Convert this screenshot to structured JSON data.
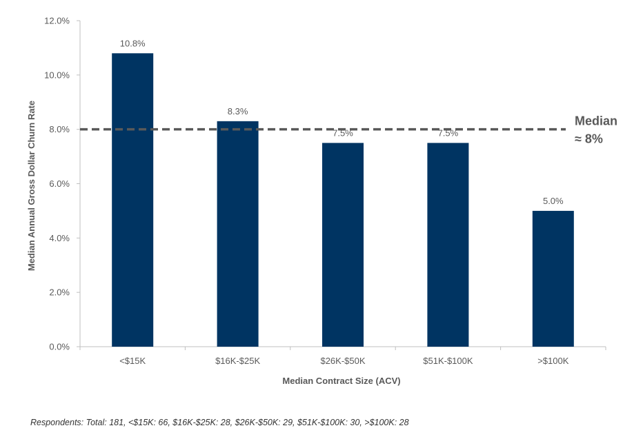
{
  "chart_data": {
    "type": "bar",
    "categories": [
      "<$15K",
      "$16K-$25K",
      "$26K-$50K",
      "$51K-$100K",
      ">$100K"
    ],
    "values": [
      10.8,
      8.3,
      7.5,
      7.5,
      5.0
    ],
    "data_labels": [
      "10.8%",
      "8.3%",
      "7.5%",
      "7.5%",
      "5.0%"
    ],
    "xlabel": "Median Contract Size (ACV)",
    "ylabel": "Median Annual Gross Dollar Churn Rate",
    "ylim": [
      0,
      12
    ],
    "yticks": [
      0,
      2,
      4,
      6,
      8,
      10,
      12
    ],
    "ytick_labels": [
      "0.0%",
      "2.0%",
      "4.0%",
      "6.0%",
      "8.0%",
      "10.0%",
      "12.0%"
    ],
    "grid": false,
    "bar_color": "#003462",
    "reference_line": {
      "value": 8,
      "style": "dashed",
      "color": "#595959",
      "label_line1": "Median",
      "label_line2": "≈ 8%"
    }
  },
  "footnote": "Respondents: Total: 181, <$15K: 66, $16K-$25K: 28, $26K-$50K: 29, $51K-$100K: 30, >$100K: 28"
}
